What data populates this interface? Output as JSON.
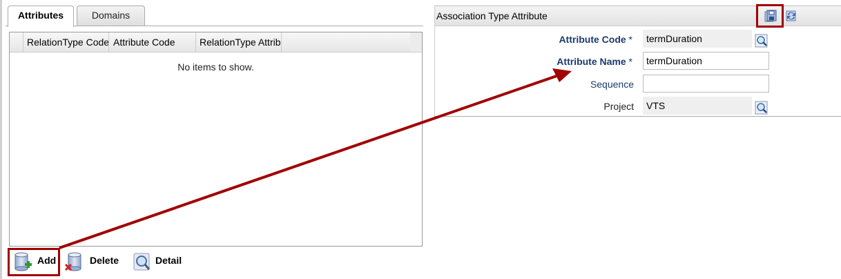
{
  "tabs": [
    {
      "label": "Attributes",
      "active": true
    },
    {
      "label": "Domains",
      "active": false
    }
  ],
  "grid": {
    "columns": [
      "RelationType Code",
      "Attribute Code",
      "RelationType Attrib"
    ],
    "empty_text": "No items to show."
  },
  "toolbar": {
    "add_label": "Add",
    "delete_label": "Delete",
    "detail_label": "Detail"
  },
  "panel": {
    "title": "Association Type Attribute",
    "header_icons": [
      "save-icon",
      "refresh-icon"
    ],
    "fields": [
      {
        "label": "Attribute Code",
        "required": "*",
        "value": "termDuration"
      },
      {
        "label": "Attribute Name",
        "required": "*",
        "value": "termDuration"
      },
      {
        "label": "Sequence",
        "value": ""
      },
      {
        "label": "Project",
        "value": "VTS"
      }
    ]
  },
  "colors": {
    "highlight": "#a00000",
    "label_blue": "#1c3a6e"
  }
}
